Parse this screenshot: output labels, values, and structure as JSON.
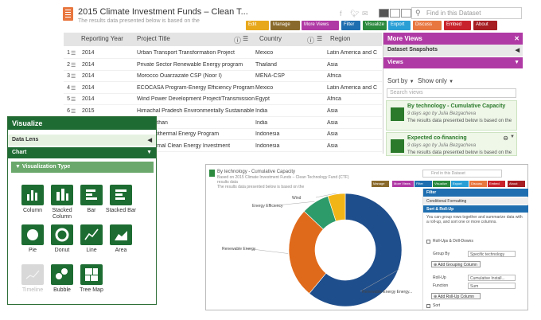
{
  "dataset": {
    "title": "2015 Climate Investment Funds – Clean T...",
    "subtitle": "The results data presented below is based on the",
    "search_placeholder": "Find in this Dataset"
  },
  "toolbar": [
    {
      "key": "edit",
      "label": "Edit",
      "color": "#e8a81c"
    },
    {
      "key": "manage",
      "label": "Manage",
      "color": "#8a6a2c"
    },
    {
      "key": "more_views",
      "label": "More Views",
      "color": "#b03aa5"
    },
    {
      "key": "filter",
      "label": "Filter",
      "color": "#1f6fb0"
    },
    {
      "key": "visualize",
      "label": "Visualize",
      "color": "#2b8a3e"
    },
    {
      "key": "export",
      "label": "Export",
      "color": "#2a9fd6"
    },
    {
      "key": "discuss",
      "label": "Discuss",
      "color": "#e8763f"
    },
    {
      "key": "embed",
      "label": "Embed",
      "color": "#c8232c"
    },
    {
      "key": "about",
      "label": "About",
      "color": "#a61d22"
    }
  ],
  "table": {
    "columns": [
      "Reporting Year",
      "Project Title",
      "Country",
      "Region"
    ],
    "rows": [
      {
        "n": "1",
        "year": "2014",
        "title": "Urban Transport Transformation Project",
        "country": "Mexico",
        "region": "Latin America and C"
      },
      {
        "n": "2",
        "year": "2014",
        "title": "Private Sector Renewable Energy program",
        "country": "Thailand",
        "region": "Asia"
      },
      {
        "n": "3",
        "year": "2014",
        "title": "Morocco Ouarzazate CSP (Noor I)",
        "country": "MENA-CSP",
        "region": "Africa"
      },
      {
        "n": "4",
        "year": "2014",
        "title": "ECOCASA Program-Energy Efficiency Program",
        "country": "Mexico",
        "region": "Latin America and C"
      },
      {
        "n": "5",
        "year": "2014",
        "title": "Wind Power Development Project/Transmission",
        "country": "Egypt",
        "region": "Africa"
      },
      {
        "n": "6",
        "year": "2015",
        "title": "Himachal Pradesh Environmentally Sustainable",
        "country": "India",
        "region": "Asia"
      },
      {
        "n": "7",
        "year": "",
        "title": "k: Rajasthan",
        "country": "India",
        "region": "Asia"
      },
      {
        "n": "8",
        "year": "",
        "title": "ctor Geothermal Energy Program",
        "country": "Indonesia",
        "region": "Asia"
      },
      {
        "n": "9",
        "year": "",
        "title": "Geothermal Clean Energy Investment",
        "country": "Indonesia",
        "region": "Asia"
      }
    ]
  },
  "more_views": {
    "title": "More Views",
    "snapshots": "Dataset Snapshots",
    "views": "Views",
    "sort_by": "Sort by",
    "show_only": "Show only",
    "search_placeholder": "Search views",
    "cards": [
      {
        "title": "By technology - Cumulative Capacity",
        "meta": "9 days ago by Julia Bezgacheva",
        "desc": "The results data presented below is based on the"
      },
      {
        "title": "Expected co-financing",
        "meta": "9 days ago by Julia Bezgacheva",
        "desc": "The results data presented below is based on the"
      }
    ]
  },
  "visualize": {
    "title": "Visualize",
    "data_lens": "Data Lens",
    "chart": "Chart",
    "viz_type": "Visualization Type",
    "types": [
      {
        "label": "Column",
        "icon": "column-chart-icon",
        "enabled": true
      },
      {
        "label": "Stacked Column",
        "icon": "stacked-column-icon",
        "enabled": true
      },
      {
        "label": "Bar",
        "icon": "bar-chart-icon",
        "enabled": true
      },
      {
        "label": "Stacked Bar",
        "icon": "stacked-bar-icon",
        "enabled": true
      },
      {
        "label": "Pie",
        "icon": "pie-chart-icon",
        "enabled": true
      },
      {
        "label": "Donut",
        "icon": "donut-chart-icon",
        "enabled": true
      },
      {
        "label": "Line",
        "icon": "line-chart-icon",
        "enabled": true
      },
      {
        "label": "Area",
        "icon": "area-chart-icon",
        "enabled": true
      },
      {
        "label": "Timeline",
        "icon": "timeline-icon",
        "enabled": false
      },
      {
        "label": "Bubble",
        "icon": "bubble-chart-icon",
        "enabled": true
      },
      {
        "label": "Tree Map",
        "icon": "tree-map-icon",
        "enabled": true
      }
    ]
  },
  "chart_window": {
    "title": "By technology - Cumulative Capacity",
    "subtitle": "Based on 2015 Climate Investment Funds – Clean Technology Fund (CTF) results data",
    "desc": "The results data presented below is based on the",
    "search_placeholder": "Find in this Dataset",
    "toolbar": [
      "Manage",
      "More Views",
      "Filter",
      "Visualize",
      "Export",
      "Discuss",
      "Embed",
      "About"
    ],
    "filter": {
      "title": "Filter",
      "conditional": "Conditional Formatting",
      "sort_rollup": "Sort & Roll-Up",
      "desc": "You can group rows together and summarize data with a roll-up, and sort one or more columns.",
      "rollup_label": "Roll-Ups & Drill-Downs",
      "group_by": "Group By",
      "group_value": "Specific technology",
      "add_group": "Add Grouping Column",
      "roll_up": "Roll-Up",
      "roll_value": "Cumulative Install...",
      "function": "Function",
      "function_value": "Sum",
      "add_rollup": "Add Roll-Up Column",
      "sort": "Sort"
    }
  },
  "chart_data": {
    "type": "pie",
    "title": "",
    "categories": [
      "Renewable Energy Energy...",
      "Renewable Energy",
      "Energy Efficiency",
      "Wind"
    ],
    "values": [
      61,
      26,
      8,
      5
    ],
    "colors": [
      "#1f4e8c",
      "#e06a1b",
      "#2e9b6b",
      "#f2b518"
    ]
  }
}
